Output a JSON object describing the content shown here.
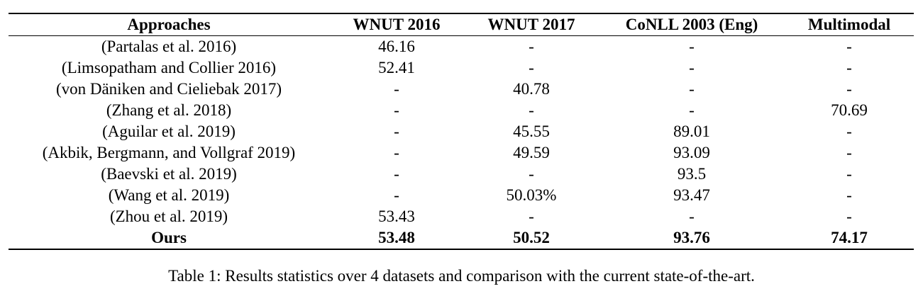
{
  "table": {
    "headers": [
      "Approaches",
      "WNUT 2016",
      "WNUT 2017",
      "CoNLL 2003 (Eng)",
      "Multimodal"
    ],
    "rows": [
      [
        "(Partalas et al. 2016)",
        "46.16",
        "-",
        "-",
        "-"
      ],
      [
        "(Limsopatham and Collier 2016)",
        "52.41",
        "-",
        "-",
        "-"
      ],
      [
        "(von Däniken and Cieliebak 2017)",
        "-",
        "40.78",
        "-",
        "-"
      ],
      [
        "(Zhang et al. 2018)",
        "-",
        "-",
        "-",
        "70.69"
      ],
      [
        "(Aguilar et al. 2019)",
        "-",
        "45.55",
        "89.01",
        "-"
      ],
      [
        "(Akbik, Bergmann, and Vollgraf 2019)",
        "-",
        "49.59",
        "93.09",
        "-"
      ],
      [
        "(Baevski et al. 2019)",
        "-",
        "-",
        "93.5",
        "-"
      ],
      [
        "(Wang et al. 2019)",
        "-",
        "50.03%",
        "93.47",
        "-"
      ],
      [
        "(Zhou et al. 2019)",
        "53.43",
        "-",
        "-",
        "-"
      ],
      [
        "Ours",
        "53.48",
        "50.52",
        "93.76",
        "74.17"
      ]
    ]
  },
  "caption": "Table 1: Results statistics over 4 datasets and comparison with the current state-of-the-art."
}
